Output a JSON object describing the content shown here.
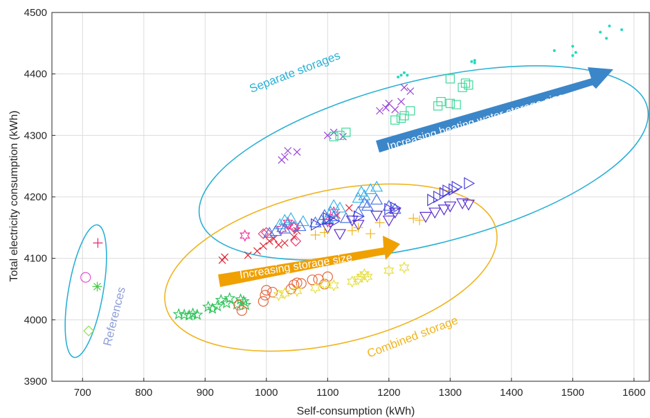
{
  "chart_data": {
    "type": "scatter",
    "title": "",
    "xlabel": "Self-consumption (kWh)",
    "ylabel": "Total electricity consumption (kWh)",
    "xlim": [
      650,
      1625
    ],
    "ylim": [
      3900,
      4500
    ],
    "xticks": [
      700,
      800,
      900,
      1000,
      1100,
      1200,
      1300,
      1400,
      1500,
      1600
    ],
    "yticks": [
      3900,
      4000,
      4100,
      4200,
      4300,
      4400,
      4500
    ],
    "grid": true,
    "colors": {
      "grid": "#dcdcdc",
      "axis": "#262626",
      "separate": "#29b0d6",
      "combined": "#f0b41e",
      "references": "#29b0d6",
      "arrow_blue": "#3b86c8",
      "arrow_orange": "#f0a000"
    },
    "annotations": {
      "separate_storages": "Separate storages",
      "combined_storage": "Combined storage",
      "references": "References",
      "arrow_heating": "Increasing heating water storage size",
      "arrow_storage": "Increasing storage size"
    },
    "series": [
      {
        "marker": "plus",
        "color": "#e8226e",
        "points": [
          [
            725,
            4125
          ]
        ]
      },
      {
        "marker": "circle",
        "color": "#e64cd6",
        "points": [
          [
            705,
            4069
          ]
        ]
      },
      {
        "marker": "asterisk",
        "color": "#44cc44",
        "points": [
          [
            724,
            4054
          ]
        ]
      },
      {
        "marker": "diamond",
        "color": "#8ce04c",
        "points": [
          [
            710,
            3982
          ]
        ]
      },
      {
        "marker": "star5",
        "color": "#2ec45a",
        "points": [
          [
            857,
            4009
          ],
          [
            866,
            4008
          ],
          [
            874,
            4007
          ],
          [
            880,
            4010
          ],
          [
            887,
            4008
          ],
          [
            905,
            4021
          ],
          [
            912,
            4018
          ],
          [
            920,
            4022
          ],
          [
            926,
            4032
          ],
          [
            935,
            4027
          ],
          [
            940,
            4035
          ],
          [
            952,
            4025
          ],
          [
            958,
            4033
          ],
          [
            963,
            4030
          ],
          [
            966,
            4024
          ]
        ]
      },
      {
        "marker": "circle",
        "color": "#e8643c",
        "points": [
          [
            955,
            4024
          ],
          [
            960,
            4015
          ],
          [
            995,
            4030
          ],
          [
            998,
            4040
          ],
          [
            1000,
            4048
          ],
          [
            1010,
            4045
          ],
          [
            1040,
            4050
          ],
          [
            1045,
            4057
          ],
          [
            1050,
            4060
          ],
          [
            1057,
            4059
          ],
          [
            1075,
            4065
          ],
          [
            1085,
            4066
          ],
          [
            1095,
            4058
          ],
          [
            1100,
            4070
          ]
        ]
      },
      {
        "marker": "star6",
        "color": "#e6e040",
        "points": [
          [
            1020,
            4040
          ],
          [
            1030,
            4043
          ],
          [
            1050,
            4047
          ],
          [
            1080,
            4052
          ],
          [
            1095,
            4058
          ],
          [
            1110,
            4056
          ],
          [
            1140,
            4062
          ],
          [
            1150,
            4066
          ],
          [
            1155,
            4070
          ],
          [
            1160,
            4074
          ],
          [
            1165,
            4070
          ],
          [
            1200,
            4080
          ],
          [
            1225,
            4085
          ]
        ]
      },
      {
        "marker": "cross",
        "color": "#e02030",
        "points": [
          [
            928,
            4097
          ],
          [
            932,
            4102
          ],
          [
            970,
            4105
          ],
          [
            985,
            4112
          ],
          [
            995,
            4120
          ],
          [
            1005,
            4128
          ],
          [
            1012,
            4132
          ],
          [
            1020,
            4122
          ],
          [
            1030,
            4125
          ],
          [
            1045,
            4135
          ],
          [
            1050,
            4145
          ],
          [
            1115,
            4170
          ],
          [
            1135,
            4182
          ]
        ]
      },
      {
        "marker": "diamond",
        "color": "#ef3f75",
        "points": [
          [
            995,
            4140
          ],
          [
            1000,
            4142
          ],
          [
            1035,
            4155
          ],
          [
            1045,
            4150
          ],
          [
            1048,
            4128
          ]
        ]
      },
      {
        "marker": "star6",
        "color": "#ef2f9f",
        "points": [
          [
            965,
            4137
          ],
          [
            1025,
            4148
          ],
          [
            1035,
            4158
          ],
          [
            1045,
            4152
          ],
          [
            1100,
            4160
          ],
          [
            1110,
            4175
          ]
        ]
      },
      {
        "marker": "triangle",
        "color": "#38b4ea",
        "points": [
          [
            1022,
            4155
          ],
          [
            1030,
            4162
          ],
          [
            1040,
            4165
          ],
          [
            1060,
            4160
          ],
          [
            1100,
            4165
          ],
          [
            1105,
            4175
          ],
          [
            1110,
            4186
          ],
          [
            1120,
            4182
          ],
          [
            1150,
            4198
          ],
          [
            1155,
            4208
          ],
          [
            1160,
            4202
          ],
          [
            1170,
            4212
          ],
          [
            1180,
            4216
          ]
        ]
      },
      {
        "marker": "triangle",
        "color": "#4a74e0",
        "points": [
          [
            1005,
            4141
          ],
          [
            1015,
            4144
          ],
          [
            1030,
            4148
          ],
          [
            1055,
            4152
          ],
          [
            1080,
            4158
          ],
          [
            1090,
            4162
          ],
          [
            1095,
            4170
          ],
          [
            1110,
            4168
          ],
          [
            1130,
            4165
          ],
          [
            1150,
            4175
          ],
          [
            1160,
            4190
          ],
          [
            1165,
            4185
          ],
          [
            1180,
            4195
          ],
          [
            1200,
            4185
          ],
          [
            1210,
            4180
          ]
        ]
      },
      {
        "marker": "triangle-right",
        "color": "#4a3ed8",
        "points": [
          [
            1080,
            4155
          ],
          [
            1100,
            4165
          ],
          [
            1110,
            4160
          ],
          [
            1150,
            4168
          ],
          [
            1200,
            4180
          ],
          [
            1210,
            4182
          ],
          [
            1270,
            4195
          ],
          [
            1280,
            4200
          ],
          [
            1290,
            4206
          ],
          [
            1295,
            4210
          ],
          [
            1305,
            4212
          ],
          [
            1310,
            4216
          ],
          [
            1330,
            4222
          ]
        ]
      },
      {
        "marker": "triangle-down",
        "color": "#5a2ed0",
        "points": [
          [
            1100,
            4150
          ],
          [
            1120,
            4140
          ],
          [
            1140,
            4162
          ],
          [
            1150,
            4155
          ],
          [
            1180,
            4170
          ],
          [
            1200,
            4162
          ],
          [
            1210,
            4175
          ],
          [
            1260,
            4168
          ],
          [
            1275,
            4175
          ],
          [
            1290,
            4180
          ],
          [
            1300,
            4185
          ],
          [
            1320,
            4190
          ],
          [
            1330,
            4188
          ]
        ]
      },
      {
        "marker": "plus",
        "color": "#f0b41e",
        "points": [
          [
            1080,
            4138
          ],
          [
            1095,
            4142
          ],
          [
            1140,
            4145
          ],
          [
            1150,
            4150
          ],
          [
            1170,
            4140
          ],
          [
            1185,
            4158
          ],
          [
            1240,
            4165
          ],
          [
            1250,
            4162
          ]
        ]
      },
      {
        "marker": "cross",
        "color": "#9b3ed8",
        "points": [
          [
            1025,
            4260
          ],
          [
            1030,
            4265
          ],
          [
            1035,
            4275
          ],
          [
            1050,
            4273
          ],
          [
            1100,
            4300
          ],
          [
            1110,
            4305
          ],
          [
            1125,
            4298
          ],
          [
            1185,
            4340
          ],
          [
            1195,
            4345
          ],
          [
            1200,
            4352
          ],
          [
            1210,
            4342
          ],
          [
            1220,
            4355
          ],
          [
            1225,
            4378
          ],
          [
            1235,
            4372
          ]
        ]
      },
      {
        "marker": "square",
        "color": "#3ed89a",
        "points": [
          [
            1110,
            4298
          ],
          [
            1120,
            4300
          ],
          [
            1130,
            4305
          ],
          [
            1210,
            4325
          ],
          [
            1220,
            4328
          ],
          [
            1225,
            4332
          ],
          [
            1235,
            4340
          ],
          [
            1280,
            4348
          ],
          [
            1285,
            4355
          ],
          [
            1300,
            4352
          ],
          [
            1310,
            4350
          ],
          [
            1300,
            4392
          ],
          [
            1320,
            4378
          ],
          [
            1325,
            4385
          ],
          [
            1330,
            4382
          ]
        ]
      },
      {
        "marker": "dot",
        "color": "#1edcc0",
        "points": [
          [
            1215,
            4395
          ],
          [
            1220,
            4398
          ],
          [
            1225,
            4402
          ],
          [
            1230,
            4398
          ],
          [
            1335,
            4420
          ],
          [
            1340,
            4418
          ],
          [
            1340,
            4422
          ],
          [
            1470,
            4438
          ],
          [
            1500,
            4430
          ],
          [
            1505,
            4435
          ],
          [
            1500,
            4445
          ],
          [
            1545,
            4468
          ],
          [
            1555,
            4458
          ],
          [
            1560,
            4478
          ],
          [
            1580,
            4472
          ]
        ]
      }
    ]
  }
}
